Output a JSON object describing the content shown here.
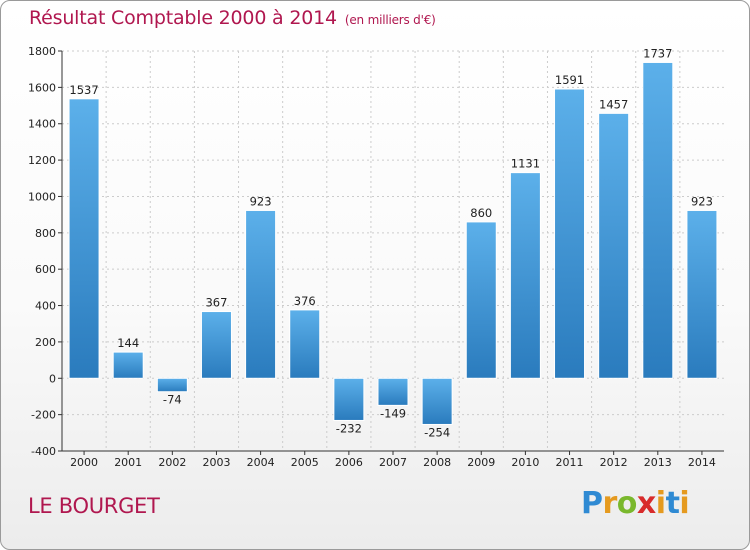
{
  "header": {
    "title": "Résultat Comptable 2000 à 2014",
    "subtitle": "(en milliers d'€)"
  },
  "footer": {
    "place": "LE BOURGET",
    "logo": {
      "letters": [
        "P",
        "r",
        "o",
        "x",
        "i",
        "t",
        "i"
      ]
    }
  },
  "colors": {
    "title": "#b0174f",
    "bar_light": "#5cb0ea",
    "bar_dark": "#2a7bbd",
    "grid": "#cccccc"
  },
  "chart_data": {
    "type": "bar",
    "title": "Résultat Comptable 2000 à 2014",
    "subtitle": "(en milliers d'€)",
    "categories": [
      "2000",
      "2001",
      "2002",
      "2003",
      "2004",
      "2005",
      "2006",
      "2007",
      "2008",
      "2009",
      "2010",
      "2011",
      "2012",
      "2013",
      "2014"
    ],
    "values": [
      1537,
      144,
      -74,
      367,
      923,
      376,
      -232,
      -149,
      -254,
      860,
      1131,
      1591,
      1457,
      1737,
      923
    ],
    "ylim": [
      -400,
      1800
    ],
    "yticks": [
      -400,
      -200,
      0,
      200,
      400,
      600,
      800,
      1000,
      1200,
      1400,
      1600,
      1800
    ],
    "grid": true,
    "legend": "none"
  }
}
